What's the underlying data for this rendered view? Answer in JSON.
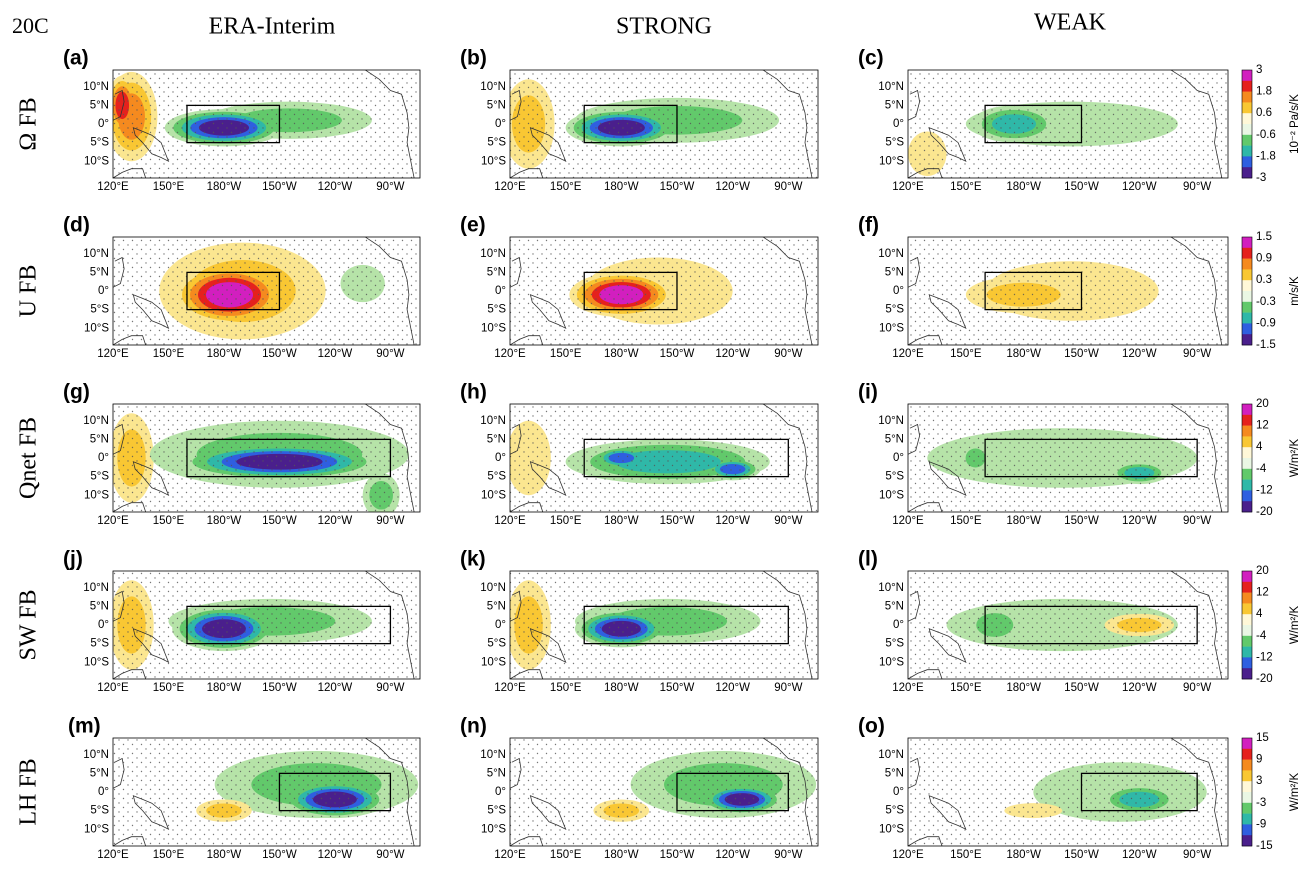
{
  "period": "20C",
  "columns": [
    "ERA-Interim",
    "STRONG",
    "WEAK"
  ],
  "rows": [
    {
      "label": "Ω FB",
      "panels": [
        "(a)",
        "(b)",
        "(c)"
      ],
      "colorbar": {
        "unit": "10⁻² Pa/s/K",
        "ticks": [
          3,
          1.8,
          0.6,
          -0.6,
          -1.8,
          -3
        ]
      }
    },
    {
      "label": "U FB",
      "panels": [
        "(d)",
        "(e)",
        "(f)"
      ],
      "colorbar": {
        "unit": "m/s/K",
        "ticks": [
          1.5,
          0.9,
          0.3,
          -0.3,
          -0.9,
          -1.5
        ]
      }
    },
    {
      "label": "Qnet FB",
      "panels": [
        "(g)",
        "(h)",
        "(i)"
      ],
      "colorbar": {
        "unit": "W/m²/K",
        "ticks": [
          20,
          12,
          4,
          -4,
          -12,
          -20
        ]
      }
    },
    {
      "label": "SW FB",
      "panels": [
        "(j)",
        "(k)",
        "(l)"
      ],
      "colorbar": {
        "unit": "W/m²/K",
        "ticks": [
          20,
          12,
          4,
          -4,
          -12,
          -20
        ]
      }
    },
    {
      "label": "LH FB",
      "panels": [
        "(m)",
        "(n)",
        "(o)"
      ],
      "colorbar": {
        "unit": "W/m²/K",
        "ticks": [
          15,
          9,
          3,
          -3,
          -9,
          -15
        ]
      }
    }
  ],
  "lat_labels": [
    "10°N",
    "5°N",
    "0°",
    "5°S",
    "10°S"
  ],
  "lon_labels": [
    "120°E",
    "150°E",
    "180°W",
    "150°W",
    "120°W",
    "90°W"
  ]
}
